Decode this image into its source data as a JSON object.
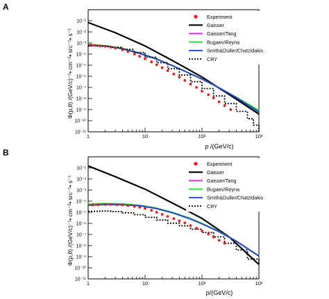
{
  "panels": [
    {
      "label": "A",
      "xlabel": "p /(GeV/c)",
      "ylabel": "Φ(p,θ) /(GeV/c)⁻¹• cm⁻²• src⁻¹• s⁻¹"
    },
    {
      "label": "B",
      "xlabel": "p/(GeV/c)",
      "ylabel": "Φ(p,θ) /(GeV/c)⁻¹• cm⁻²• src⁻¹• s⁻¹"
    }
  ],
  "chart_data": [
    {
      "type": "line",
      "title": "A",
      "xlabel": "p /(GeV/c)",
      "ylabel": "Φ(p,θ) /(GeV/c)⁻¹• cm⁻²• src⁻¹• s⁻¹",
      "xscale": "log",
      "yscale": "log",
      "xlim": [
        1,
        1000
      ],
      "ylim": [
        1e-11,
        1
      ],
      "xticks": [
        {
          "v": 1,
          "t": "1"
        },
        {
          "v": 10,
          "t": "10"
        },
        {
          "v": 100,
          "t": "10²"
        },
        {
          "v": 1000,
          "t": "10³"
        }
      ],
      "yticks": [
        {
          "e": -1,
          "t": "10⁻¹"
        },
        {
          "e": -2,
          "t": "10⁻²"
        },
        {
          "e": -3,
          "t": "10⁻³"
        },
        {
          "e": -4,
          "t": "10⁻⁴"
        },
        {
          "e": -5,
          "t": "10⁻⁵"
        },
        {
          "e": -6,
          "t": "10⁻⁶"
        },
        {
          "e": -7,
          "t": "10⁻⁷"
        },
        {
          "e": -8,
          "t": "10⁻⁸"
        },
        {
          "e": -9,
          "t": "10⁻⁹"
        },
        {
          "e": -10,
          "t": "10⁻¹⁰"
        },
        {
          "e": -11,
          "t": "10⁻¹¹"
        }
      ],
      "legend_position": "top-right",
      "series": [
        {
          "name": "Experiment",
          "kind": "points",
          "color": "#e8191c",
          "x": [
            1.1,
            1.3,
            1.6,
            2,
            2.5,
            3,
            4,
            5,
            6.5,
            8,
            10,
            13,
            16,
            20,
            25,
            32,
            40,
            50,
            63,
            80,
            100,
            130,
            160,
            200,
            250,
            320
          ],
          "y": [
            0.00063,
            0.0006,
            0.00056,
            0.0005,
            0.00042,
            0.00035,
            0.00024,
            0.00017,
            0.0001,
            6.4e-05,
            3.8e-05,
            2e-05,
            1.1e-05,
            6e-06,
            3.2e-06,
            1.6e-06,
            8.5e-07,
            4.3e-07,
            2e-07,
            1e-07,
            4.6e-08,
            2.2e-08,
            1.1e-08,
            5e-09,
            2.3e-09,
            1e-09
          ]
        },
        {
          "name": "Gaisser",
          "kind": "line",
          "color": "#000000",
          "width": 2.2,
          "x": [
            1,
            3,
            10,
            30,
            100,
            300,
            1000
          ],
          "y": [
            0.07,
            0.0085,
            0.00055,
            2.7e-05,
            8.5e-07,
            2.3e-08,
            4e-10
          ]
        },
        {
          "name": "Gaisser/Tang",
          "kind": "line",
          "color": "#e51ee5",
          "width": 1.8,
          "x": [
            1,
            2,
            4,
            8,
            15,
            30,
            60,
            100,
            200,
            400,
            1000
          ],
          "y": [
            0.0007,
            0.00055,
            0.00032,
            0.00012,
            4.1e-05,
            9.5e-06,
            1.9e-06,
            5.8e-07,
            9.5e-08,
            1.3e-08,
            8e-10
          ]
        },
        {
          "name": "Bugaev/Reyna",
          "kind": "line",
          "color": "#22d422",
          "width": 1.8,
          "x": [
            1,
            2,
            4,
            8,
            15,
            30,
            60,
            100,
            200,
            400,
            1000
          ],
          "y": [
            0.00075,
            0.00058,
            0.00033,
            0.000125,
            4.2e-05,
            9.6e-06,
            1.9e-06,
            5.8e-07,
            9.3e-08,
            1.3e-08,
            8.5e-10
          ]
        },
        {
          "name": "Smith&Duller/Chatzidakis",
          "kind": "line",
          "color": "#1f3fd8",
          "width": 1.8,
          "x": [
            1,
            2,
            4,
            8,
            15,
            30,
            60,
            100,
            200,
            400,
            1000
          ],
          "y": [
            0.00065,
            0.00052,
            0.0003,
            0.000115,
            4e-05,
            9.3e-06,
            1.85e-06,
            5.6e-07,
            9e-08,
            1.2e-08,
            6e-10
          ]
        },
        {
          "name": "CRY",
          "kind": "step",
          "color": "#000000",
          "width": 1.8,
          "dash": "2,2",
          "x": [
            1,
            1.6,
            2.5,
            4,
            6.3,
            10,
            16,
            25,
            40,
            63,
            100,
            160,
            250,
            400,
            630,
            800,
            1000
          ],
          "y": [
            0.00055,
            0.0005,
            0.00042,
            0.00027,
            0.00014,
            5.2e-05,
            1.7e-05,
            4.8e-06,
            1.3e-06,
            3.3e-07,
            8e-08,
            1.7e-08,
            3.5e-09,
            7e-10,
            1.5e-10,
            4e-11,
            1e-11
          ]
        }
      ]
    },
    {
      "type": "line",
      "title": "B",
      "xlabel": "p/(GeV/c)",
      "ylabel": "Φ(p,θ) /(GeV/c)⁻¹• cm⁻²• src⁻¹• s⁻¹",
      "xscale": "log",
      "yscale": "log",
      "xlim": [
        1,
        1000
      ],
      "ylim": [
        1e-11,
        1
      ],
      "xticks": [
        {
          "v": 1,
          "t": "1"
        },
        {
          "v": 10,
          "t": "10"
        },
        {
          "v": 100,
          "t": "10²"
        },
        {
          "v": 1000,
          "t": "10³"
        }
      ],
      "yticks": [
        {
          "e": -1,
          "t": "10⁻¹"
        },
        {
          "e": -2,
          "t": "10⁻²"
        },
        {
          "e": -3,
          "t": "10⁻³"
        },
        {
          "e": -4,
          "t": "10⁻⁴"
        },
        {
          "e": -5,
          "t": "10⁻⁵"
        },
        {
          "e": -6,
          "t": "10⁻⁶"
        },
        {
          "e": -7,
          "t": "10⁻⁷"
        },
        {
          "e": -8,
          "t": "10⁻⁸"
        },
        {
          "e": -9,
          "t": "10⁻⁹"
        },
        {
          "e": -10,
          "t": "10⁻¹⁰"
        },
        {
          "e": -11,
          "t": "10⁻¹¹"
        }
      ],
      "legend_position": "top-right",
      "series": [
        {
          "name": "Experiment",
          "kind": "points",
          "color": "#e8191c",
          "x": [
            1.2,
            1.5,
            2,
            2.5,
            3.2,
            4,
            5,
            6.5,
            8,
            10,
            13,
            16,
            20,
            25,
            32,
            40,
            50,
            63,
            80,
            100,
            130,
            160,
            200,
            250
          ],
          "y": [
            4.5e-05,
            4.8e-05,
            5e-05,
            5e-05,
            4.8e-05,
            4.5e-05,
            4e-05,
            3.4e-05,
            2.8e-05,
            2.2e-05,
            1.5e-05,
            1e-05,
            6.5e-06,
            4.3e-06,
            2.7e-06,
            1.7e-06,
            1.1e-06,
            6.3e-07,
            3.7e-07,
            2.1e-07,
            1.1e-07,
            5.8e-08,
            3e-08,
            1.6e-08
          ]
        },
        {
          "name": "Gaisser",
          "kind": "line",
          "color": "#000000",
          "width": 2.2,
          "x": [
            1,
            3,
            10,
            30,
            100,
            300,
            1000
          ],
          "y": [
            0.15,
            0.016,
            0.0012,
            7e-05,
            2.8e-06,
            6e-08,
            2e-10
          ]
        },
        {
          "name": "Gaisser/Tang",
          "kind": "line",
          "color": "#e51ee5",
          "width": 1.8,
          "x": [
            1,
            2,
            4,
            8,
            15,
            30,
            60,
            100,
            200,
            400,
            1000
          ],
          "y": [
            4.8e-05,
            5.5e-05,
            5.2e-05,
            4e-05,
            2.4e-05,
            9.5e-06,
            2.8e-06,
            9.5e-07,
            1.9e-07,
            2.6e-08,
            1.2e-09
          ]
        },
        {
          "name": "Bugaev/Reyna",
          "kind": "line",
          "color": "#22d422",
          "width": 1.8,
          "x": [
            1,
            2,
            4,
            8,
            15,
            30,
            60,
            100,
            200,
            400,
            1000
          ],
          "y": [
            5.5e-05,
            6.2e-05,
            5.8e-05,
            4.3e-05,
            2.6e-05,
            1e-05,
            3e-06,
            1e-06,
            1.9e-07,
            2.5e-08,
            1.2e-09
          ]
        },
        {
          "name": "Smith&Duller/Chatzidakis",
          "kind": "line",
          "color": "#1f3fd8",
          "width": 1.8,
          "x": [
            1,
            2,
            4,
            8,
            15,
            30,
            60,
            100,
            200,
            400,
            1000
          ],
          "y": [
            4.2e-05,
            5e-05,
            4.8e-05,
            3.8e-05,
            2.3e-05,
            9.2e-06,
            2.7e-06,
            9e-07,
            1.75e-07,
            2.4e-08,
            1.1e-09
          ]
        },
        {
          "name": "CRY",
          "kind": "step",
          "color": "#000000",
          "width": 1.8,
          "dash": "2,2",
          "x": [
            1,
            1.6,
            2.5,
            4,
            6.3,
            10,
            16,
            25,
            40,
            63,
            100,
            160,
            250,
            400,
            630,
            1000
          ],
          "y": [
            1.2e-05,
            1.3e-05,
            1.15e-05,
            9e-06,
            6e-06,
            3.5e-06,
            2e-06,
            1.05e-06,
            6e-07,
            3e-07,
            1.5e-07,
            6e-08,
            1.6e-08,
            4e-09,
            6e-10,
            2e-10
          ]
        }
      ]
    }
  ]
}
